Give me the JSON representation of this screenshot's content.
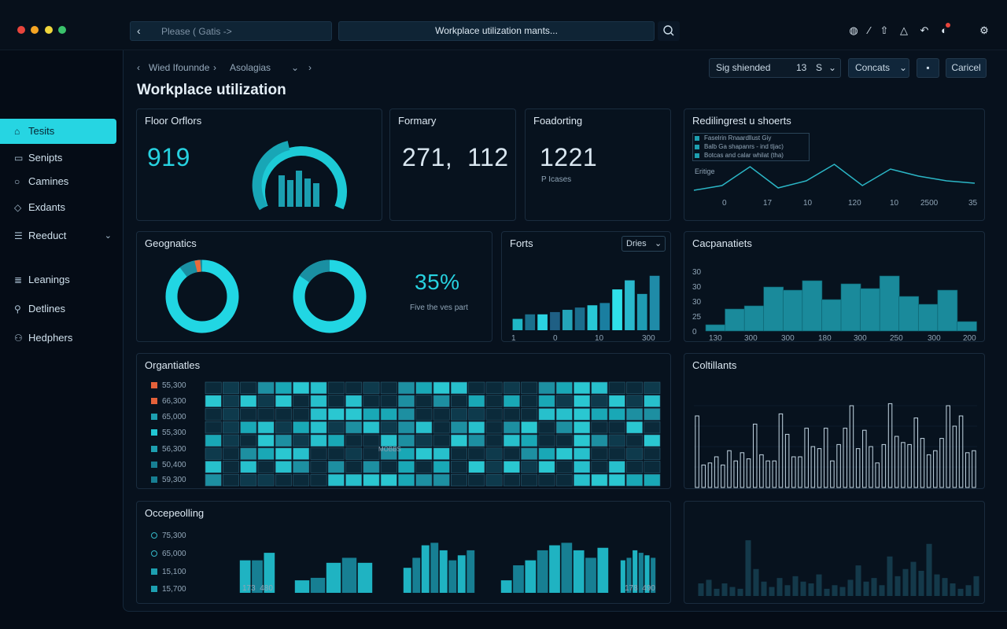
{
  "titlebar": {
    "dots": [
      "#e8453c",
      "#f5a524",
      "#f0d63c",
      "#3ac26b"
    ],
    "back_placeholder": "Please ( Gatis ->",
    "search_text": "Workplace utilization mants...",
    "icons": [
      "help-icon",
      "pen-icon",
      "bell-icon",
      "warning-icon",
      "refresh-icon",
      "alert-icon",
      "settings-icon"
    ]
  },
  "sidebar": {
    "items": [
      {
        "label": "Tesits",
        "icon": "home-icon"
      },
      {
        "label": "Senipts",
        "icon": "reports-icon"
      },
      {
        "label": "Camines",
        "icon": "chat-icon"
      },
      {
        "label": "Exdants",
        "icon": "shield-icon"
      },
      {
        "label": "Reeduct",
        "icon": "stack-icon"
      },
      {
        "label": "Leanings",
        "icon": "list-icon"
      },
      {
        "label": "Detlines",
        "icon": "key-icon"
      },
      {
        "label": "Hedphers",
        "icon": "users-icon"
      }
    ]
  },
  "header": {
    "breadcrumb": [
      "Wied Ifounnde",
      "Asolagias"
    ],
    "title": "Workplace utilization",
    "filter_label": "Sig shiended",
    "filter_value": "13",
    "filter_unit": "S",
    "contacts_label": "Concats",
    "cancel_label": "Caricel"
  },
  "cards": {
    "floor": {
      "title": "Floor Orflors",
      "value": "919"
    },
    "formary": {
      "title": "Formary",
      "value": "271,  112"
    },
    "foadorting": {
      "title": "Foadorting",
      "value": "1221",
      "sub": "P Icases"
    },
    "redline": {
      "title": "Redilingrest u shoerts",
      "legend": [
        "Faselrin Rnaardllust Giy",
        "Balb Ga shapanrs - ind tljac)",
        "Botcas and calar whilat (tha)"
      ],
      "y_label": "Eritige",
      "x_ticks": [
        "0",
        "17",
        "10",
        "120",
        "10",
        "2500",
        "35"
      ]
    },
    "geognatics": {
      "title": "Geognatics",
      "percent": "35%",
      "caption": "Five the ves part"
    },
    "forts": {
      "title": "Forts",
      "select": "Dries",
      "x_ticks": [
        "1",
        "0",
        "10",
        "300"
      ]
    },
    "capacities": {
      "title": "Cacpanatiets",
      "y_ticks": [
        "30",
        "30",
        "30",
        "25",
        "0"
      ],
      "x_ticks": [
        "130",
        "300",
        "300",
        "180",
        "300",
        "250",
        "300",
        "200"
      ]
    },
    "organatiles": {
      "title": "Organtiatles",
      "legend": [
        "55,300",
        "66,300",
        "65,000",
        "55,300",
        "56,300",
        "50,400",
        "59,300"
      ],
      "map_label": "MOBBS"
    },
    "coltilants": {
      "title": "Coltillants"
    },
    "occupation": {
      "title": "Occepeolling",
      "legend": [
        "75,300",
        "65,000",
        "15,100",
        "15,700"
      ],
      "x_left": "173  480",
      "x_right": "178  490"
    }
  },
  "chart_data": [
    {
      "type": "line",
      "x": [
        0,
        1,
        2,
        3,
        4,
        5,
        6,
        7,
        8,
        9,
        10
      ],
      "values": [
        10,
        14,
        30,
        12,
        18,
        32,
        14,
        28,
        22,
        18,
        16
      ],
      "ylim": [
        0,
        40
      ]
    },
    {
      "type": "bar",
      "x_ticks": [
        "1",
        "0",
        "10",
        "300"
      ],
      "values": [
        5,
        7,
        7,
        8,
        9,
        10,
        11,
        12,
        18,
        22,
        16,
        24
      ],
      "ylim": [
        0,
        26
      ]
    },
    {
      "type": "area",
      "y_ticks": [
        "30",
        "30",
        "30",
        "25",
        "0"
      ],
      "x_ticks": [
        "130",
        "300",
        "300",
        "180",
        "300",
        "250",
        "300",
        "200"
      ],
      "values": [
        4,
        14,
        16,
        28,
        26,
        32,
        20,
        30,
        27,
        35,
        22,
        17,
        26,
        6
      ],
      "ylim": [
        0,
        40
      ]
    },
    {
      "type": "bar",
      "values": [
        70,
        22,
        24,
        30,
        22,
        36,
        26,
        34,
        28,
        62,
        32,
        26,
        26,
        72,
        52,
        30,
        30,
        58,
        40,
        38,
        58,
        26,
        42,
        58,
        80,
        38,
        56,
        40,
        24,
        42,
        82,
        50,
        44,
        42,
        68,
        48,
        32,
        36,
        48,
        80,
        60,
        70,
        34,
        36
      ],
      "ylim": [
        0,
        100
      ]
    },
    {
      "type": "bar",
      "groups": [
        [
          26,
          26,
          32
        ],
        [
          10,
          12,
          24,
          28,
          24
        ],
        [
          20,
          28,
          38,
          40,
          34,
          26,
          30,
          34
        ],
        [
          10,
          22,
          26,
          34,
          38,
          40,
          34,
          28,
          36
        ],
        [
          20,
          28,
          26,
          32,
          30,
          26,
          22
        ],
        [
          26,
          28,
          34,
          32,
          30,
          28
        ]
      ],
      "ylim": [
        0,
        44
      ]
    },
    {
      "type": "bar",
      "values": [
        14,
        18,
        8,
        14,
        10,
        8,
        62,
        30,
        16,
        10,
        20,
        12,
        22,
        16,
        14,
        24,
        8,
        12,
        10,
        18,
        34,
        16,
        20,
        12,
        44,
        22,
        30,
        38,
        28,
        58,
        24,
        20,
        14,
        8,
        12,
        22
      ],
      "ylim": [
        0,
        70
      ]
    }
  ]
}
